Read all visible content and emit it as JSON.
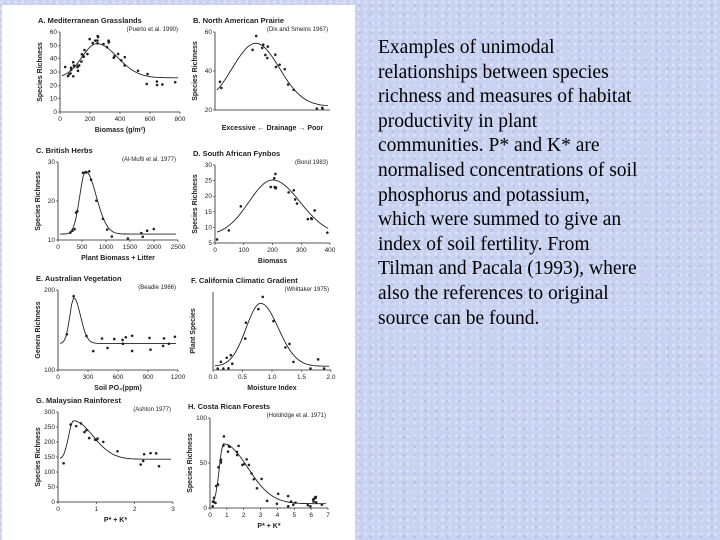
{
  "figure": {
    "panels": [
      {
        "title": "A. Mediterranean Grasslands",
        "citation": "(Puerto et al. 1990)",
        "y_label": "Species Richness",
        "x_label": "Biomass (g/m²)",
        "x_ticks": [
          0,
          200,
          400,
          600,
          800
        ],
        "y_ticks": [
          0,
          10,
          20,
          30,
          40,
          50,
          60
        ]
      },
      {
        "title": "B. North American Prairie",
        "citation": "(Dix and Smeins 1967)",
        "y_label": "Species Richness",
        "x_label": "Excessive ← Drainage → Poor",
        "x_ticks": [],
        "y_ticks": [
          20,
          40,
          60
        ]
      },
      {
        "title": "C. British Herbs",
        "citation": "(Al-Mufti et al. 1977)",
        "y_label": "Species Richness",
        "x_label": "Plant Biomass + Litter",
        "x_ticks": [
          0,
          500,
          1000,
          1500,
          2000,
          2500
        ],
        "y_ticks": [
          10,
          20,
          30
        ]
      },
      {
        "title": "D. South African Fynbos",
        "citation": "(Bond 1983)",
        "y_label": "Species Richness",
        "x_label": "Biomass",
        "x_ticks": [
          0,
          100,
          200,
          300,
          400
        ],
        "y_ticks": [
          5,
          10,
          15,
          20,
          25,
          30
        ]
      },
      {
        "title": "E. Australian Vegetation",
        "citation": "(Beadle 1966)",
        "y_label": "Genera Richness",
        "x_label": "Soil PO₄(ppm)",
        "x_ticks": [
          0,
          300,
          600,
          900,
          1200
        ],
        "y_ticks": [
          100,
          200
        ]
      },
      {
        "title": "F. California Climatic Gradient",
        "citation": "(Whittaker 1975)",
        "y_label": "Plant Species",
        "x_label": "Moisture Index",
        "x_ticks": [
          {
            "value": 0,
            "label": "0.0"
          },
          {
            "value": 0.5,
            "label": "0.5"
          },
          {
            "value": 1,
            "label": "1.0"
          },
          {
            "value": 1.5,
            "label": "1.5"
          },
          {
            "value": 2,
            "label": "2.0"
          }
        ],
        "y_ticks": []
      },
      {
        "title": "G. Malaysian Rainforest",
        "citation": "(Ashton 1977)",
        "y_label": "Species Richness",
        "x_label": "P* + K*",
        "x_ticks": [
          0,
          1,
          2,
          3
        ],
        "y_ticks": [
          0,
          50,
          100,
          150,
          200,
          250,
          300
        ]
      },
      {
        "title": "H. Costa Rican Forests",
        "citation": "(Holdridge et al. 1971)",
        "y_label": "Species Richness",
        "x_label": "P* + K*",
        "x_ticks": [
          0,
          1,
          2,
          3,
          4,
          5,
          6,
          7
        ],
        "y_ticks": [
          0,
          50,
          100
        ]
      }
    ]
  },
  "caption": {
    "lines": [
      "Examples of unimodal",
      "relationships between species",
      "richness and measures of habitat",
      "productivity in plant",
      "communities. P* and K* are",
      "normalised concentrations of soil",
      "phosphorus and potassium,",
      "which were summed to give an",
      "index of soil fertility. From",
      "Tilman and Pacala (1993), where",
      "also the references to original",
      "source can be found."
    ]
  }
}
